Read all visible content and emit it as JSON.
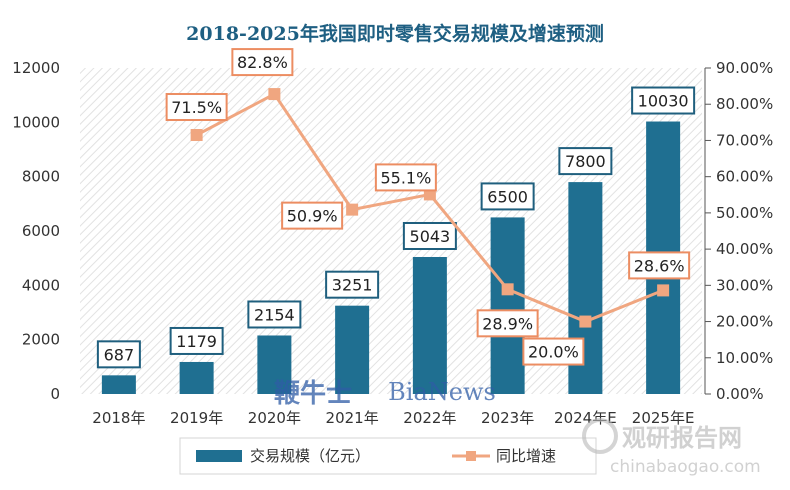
{
  "chart_data": {
    "type": "bar+line",
    "title": "2018-2025年我国即时零售交易规模及增速预测",
    "categories": [
      "2018年",
      "2019年",
      "2020年",
      "2021年",
      "2022年",
      "2023年",
      "2024年E",
      "2025年E"
    ],
    "series": [
      {
        "name": "交易规模（亿元）",
        "type": "bar",
        "axis": "left",
        "values": [
          687,
          1179,
          2154,
          3251,
          5043,
          6500,
          7800,
          10030
        ],
        "labels": [
          "687",
          "1179",
          "2154",
          "3251",
          "5043",
          "6500",
          "7800",
          "10030"
        ]
      },
      {
        "name": "同比增速",
        "type": "line",
        "axis": "right",
        "values": [
          null,
          71.5,
          82.8,
          50.9,
          55.1,
          28.9,
          20.0,
          28.6
        ],
        "labels": [
          "",
          "71.5%",
          "82.8%",
          "50.9%",
          "55.1%",
          "28.9%",
          "20.0%",
          "28.6%"
        ]
      }
    ],
    "y_left": {
      "min": 0,
      "max": 12000,
      "ticks": [
        "0",
        "2000",
        "4000",
        "6000",
        "8000",
        "10000",
        "12000"
      ]
    },
    "y_right": {
      "min": 0,
      "max": 90,
      "ticks": [
        "0.00%",
        "10.00%",
        "20.00%",
        "30.00%",
        "40.00%",
        "50.00%",
        "60.00%",
        "70.00%",
        "80.00%",
        "90.00%"
      ]
    },
    "legend_position": "bottom",
    "colors": {
      "bar": "#1f6f91",
      "line": "#f0a680",
      "title": "#1e5f82",
      "box_bar": "#1f5f7e",
      "box_line": "#ec8d62"
    }
  },
  "watermarks": {
    "center_cn": "鞭牛士",
    "center_en": "BiaNews",
    "logo_cn": "观研报告网",
    "logo_en": "chinabaogao.com"
  }
}
